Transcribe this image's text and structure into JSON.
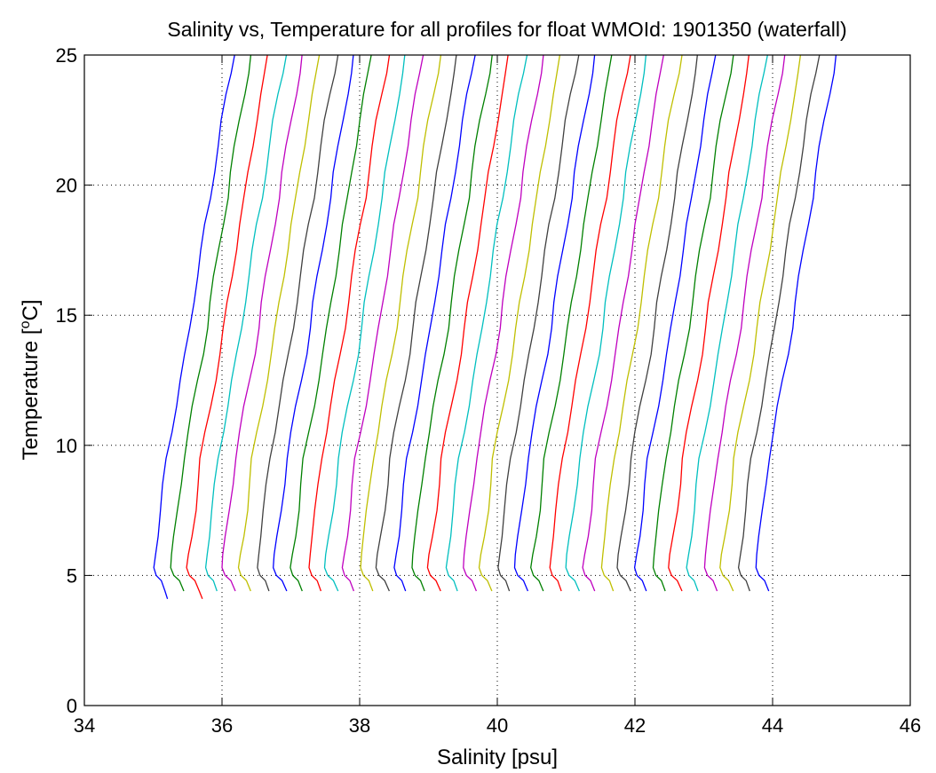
{
  "chart_data": {
    "type": "line",
    "title": "Salinity vs, Temperature for all profiles for float WMOId: 1901350 (waterfall)",
    "xlabel": "Salinity [psu]",
    "ylabel_main": "Temperature [",
    "ylabel_sup": "o",
    "ylabel_end": "C]",
    "xlim": [
      34,
      46
    ],
    "ylim": [
      0,
      25
    ],
    "xticks": [
      "34",
      "36",
      "38",
      "40",
      "42",
      "44",
      "46"
    ],
    "yticks": [
      "0",
      "5",
      "10",
      "15",
      "20",
      "25"
    ],
    "xtick_values": [
      34,
      36,
      38,
      40,
      42,
      44,
      46
    ],
    "ytick_values": [
      0,
      5,
      10,
      15,
      20,
      25
    ],
    "grid": true,
    "grid_style": "dotted",
    "waterfall_offset_per_profile": 0.25,
    "color_cycle": [
      "#0000ff",
      "#008000",
      "#ff0000",
      "#00bfbf",
      "#bf00bf",
      "#bfbf00",
      "#404040"
    ],
    "profile_shape": [
      [
        4.1,
        0.22
      ],
      [
        4.4,
        0.18
      ],
      [
        4.8,
        0.12
      ],
      [
        5.0,
        0.04
      ],
      [
        5.3,
        0.0
      ],
      [
        5.8,
        0.02
      ],
      [
        6.5,
        0.06
      ],
      [
        7.5,
        0.11
      ],
      [
        8.5,
        0.15
      ],
      [
        9.5,
        0.19
      ],
      [
        10.5,
        0.26
      ],
      [
        11.5,
        0.33
      ],
      [
        12.5,
        0.4
      ],
      [
        13.5,
        0.47
      ],
      [
        14.5,
        0.53
      ],
      [
        15.5,
        0.58
      ],
      [
        16.5,
        0.64
      ],
      [
        17.5,
        0.7
      ],
      [
        18.5,
        0.76
      ],
      [
        19.5,
        0.83
      ],
      [
        20.5,
        0.88
      ],
      [
        21.5,
        0.94
      ],
      [
        22.5,
        1.0
      ],
      [
        23.5,
        1.07
      ],
      [
        24.3,
        1.13
      ],
      [
        25.0,
        1.17
      ]
    ],
    "profiles": [
      {
        "x0": 35.0,
        "tmin": 4.1,
        "tmax": 25.0
      },
      {
        "x0": 35.25,
        "tmin": 4.2,
        "tmax": 25.0
      },
      {
        "x0": 35.5,
        "tmin": 4.1,
        "tmax": 25.0
      },
      {
        "x0": 35.75,
        "tmin": 4.2,
        "tmax": 25.0
      },
      {
        "x0": 36.0,
        "tmin": 4.2,
        "tmax": 25.0
      },
      {
        "x0": 36.25,
        "tmin": 4.2,
        "tmax": 25.0
      },
      {
        "x0": 36.5,
        "tmin": 4.2,
        "tmax": 25.0
      },
      {
        "x0": 36.75,
        "tmin": 4.2,
        "tmax": 25.0
      },
      {
        "x0": 37.0,
        "tmin": 4.2,
        "tmax": 25.0
      },
      {
        "x0": 37.25,
        "tmin": 4.2,
        "tmax": 25.0
      },
      {
        "x0": 37.5,
        "tmin": 4.2,
        "tmax": 25.0
      },
      {
        "x0": 37.75,
        "tmin": 4.2,
        "tmax": 25.0
      },
      {
        "x0": 38.0,
        "tmin": 4.2,
        "tmax": 25.0
      },
      {
        "x0": 38.25,
        "tmin": 4.2,
        "tmax": 25.0
      },
      {
        "x0": 38.5,
        "tmin": 4.2,
        "tmax": 25.0
      },
      {
        "x0": 38.75,
        "tmin": 4.2,
        "tmax": 25.0
      },
      {
        "x0": 39.0,
        "tmin": 4.2,
        "tmax": 25.0
      },
      {
        "x0": 39.25,
        "tmin": 4.2,
        "tmax": 25.0
      },
      {
        "x0": 39.5,
        "tmin": 4.2,
        "tmax": 25.0
      },
      {
        "x0": 39.75,
        "tmin": 4.2,
        "tmax": 25.0
      },
      {
        "x0": 40.0,
        "tmin": 4.2,
        "tmax": 25.0
      },
      {
        "x0": 40.25,
        "tmin": 4.2,
        "tmax": 25.0
      },
      {
        "x0": 40.5,
        "tmin": 4.2,
        "tmax": 25.0
      },
      {
        "x0": 40.75,
        "tmin": 4.2,
        "tmax": 25.0
      },
      {
        "x0": 41.0,
        "tmin": 4.2,
        "tmax": 25.0
      },
      {
        "x0": 41.25,
        "tmin": 4.2,
        "tmax": 25.0
      },
      {
        "x0": 41.5,
        "tmin": 4.2,
        "tmax": 25.0
      },
      {
        "x0": 41.75,
        "tmin": 4.2,
        "tmax": 25.0
      },
      {
        "x0": 42.0,
        "tmin": 4.2,
        "tmax": 25.0
      },
      {
        "x0": 42.25,
        "tmin": 4.2,
        "tmax": 25.0
      },
      {
        "x0": 42.5,
        "tmin": 4.2,
        "tmax": 25.0
      },
      {
        "x0": 42.75,
        "tmin": 4.2,
        "tmax": 25.0
      },
      {
        "x0": 43.0,
        "tmin": 4.2,
        "tmax": 25.0
      },
      {
        "x0": 43.25,
        "tmin": 4.2,
        "tmax": 25.0
      },
      {
        "x0": 43.5,
        "tmin": 4.2,
        "tmax": 25.0
      },
      {
        "x0": 43.75,
        "tmin": 4.2,
        "tmax": 25.0
      }
    ]
  }
}
